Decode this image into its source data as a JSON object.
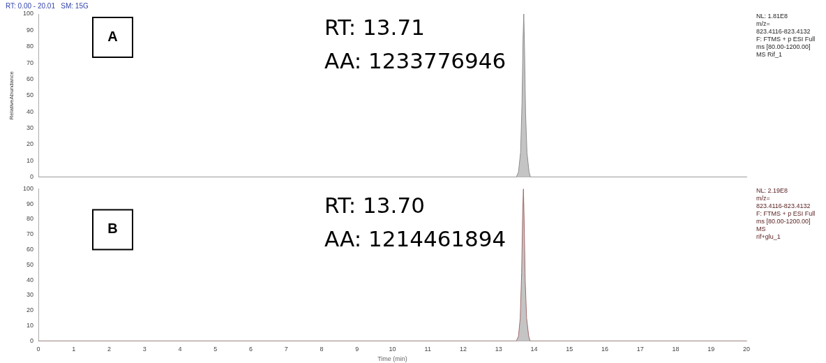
{
  "chart_data": [
    {
      "type": "area",
      "title": "A",
      "subtitle": "RT: 0.00 - 20.01   SM: 15G",
      "ylabel": "RelativeAbundance",
      "annotations": [
        "RT: 13.71",
        "AA: 1233776946",
        "NL: 1.81E8",
        "m/z=",
        "823.4116-823.4132",
        "F: FTMS + p ESI Full",
        "ms [80.00-1200.00]",
        "MS Rif_1"
      ],
      "series": [
        {
          "color": "#8c8c8c",
          "x": [
            0,
            13.5,
            13.56,
            13.62,
            13.66,
            13.69,
            13.71,
            13.73,
            13.76,
            13.8,
            13.86,
            13.9,
            20
          ],
          "values": [
            0,
            0,
            3,
            15,
            45,
            85,
            100,
            80,
            40,
            15,
            3,
            0,
            0
          ]
        }
      ],
      "xlim": [
        0,
        20
      ],
      "xticks": [
        0,
        1,
        2,
        3,
        4,
        5,
        6,
        7,
        8,
        9,
        10,
        11,
        12,
        13,
        14,
        15,
        16,
        17,
        18,
        19,
        20
      ],
      "ylim": [
        0,
        100
      ],
      "yticks": [
        0,
        10,
        20,
        30,
        40,
        50,
        60,
        70,
        80,
        90,
        100
      ],
      "tick_labels": "y",
      "grid": false,
      "legend": false
    },
    {
      "type": "area",
      "title": "B",
      "xlabel": "Time (min)",
      "annotations": [
        "RT: 13.70",
        "AA: 1214461894",
        "NL: 2.19E8",
        "m/z=",
        "823.4116-823.4132",
        "F: FTMS + p ESI Full",
        "ms [80.00-1200.00]",
        "MS",
        "rif+glu_1"
      ],
      "series": [
        {
          "color": "#a06a6a",
          "x": [
            0,
            13.5,
            13.56,
            13.61,
            13.65,
            13.68,
            13.7,
            13.72,
            13.75,
            13.79,
            13.85,
            13.89,
            20
          ],
          "values": [
            0,
            0,
            3,
            15,
            45,
            85,
            100,
            80,
            40,
            15,
            3,
            0,
            0
          ]
        }
      ],
      "xlim": [
        0,
        20
      ],
      "xticks": [
        0,
        1,
        2,
        3,
        4,
        5,
        6,
        7,
        8,
        9,
        10,
        11,
        12,
        13,
        14,
        15,
        16,
        17,
        18,
        19,
        20
      ],
      "ylim": [
        0,
        100
      ],
      "yticks": [
        0,
        10,
        20,
        30,
        40,
        50,
        60,
        70,
        80,
        90,
        100
      ],
      "grid": false,
      "legend": false
    }
  ]
}
